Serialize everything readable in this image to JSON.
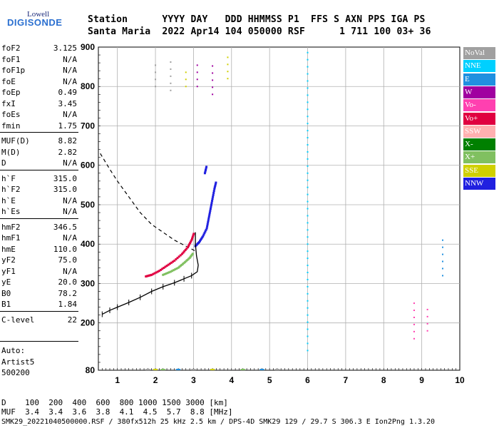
{
  "logo": {
    "top": "Lowell",
    "main": "DIGISONDE"
  },
  "header": {
    "line1": "Station      YYYY DAY   DDD HHMMSS P1  FFS S AXN PPS IGA PS",
    "line2": "Santa Maria  2022 Apr14 104 050000 RSF      1 711 100 03+ 36"
  },
  "params": [
    {
      "group": 0,
      "label": "foF2",
      "value": "3.125"
    },
    {
      "group": 0,
      "label": "foF1",
      "value": "N/A"
    },
    {
      "group": 0,
      "label": "foF1p",
      "value": "N/A"
    },
    {
      "group": 0,
      "label": "foE",
      "value": "N/A"
    },
    {
      "group": 0,
      "label": "foEp",
      "value": "0.49"
    },
    {
      "group": 0,
      "label": "fxI",
      "value": "3.45"
    },
    {
      "group": 0,
      "label": "foEs",
      "value": "N/A"
    },
    {
      "group": 0,
      "label": "fmin",
      "value": "1.75"
    },
    {
      "group": 1,
      "label": "MUF(D)",
      "value": "8.82"
    },
    {
      "group": 1,
      "label": "M(D)",
      "value": "2.82"
    },
    {
      "group": 1,
      "label": "D",
      "value": "N/A"
    },
    {
      "group": 2,
      "label": "h`F",
      "value": "315.0"
    },
    {
      "group": 2,
      "label": "h`F2",
      "value": "315.0"
    },
    {
      "group": 2,
      "label": "h`E",
      "value": "N/A"
    },
    {
      "group": 2,
      "label": "h`Es",
      "value": "N/A"
    },
    {
      "group": 3,
      "label": "hmF2",
      "value": "346.5"
    },
    {
      "group": 3,
      "label": "hmF1",
      "value": "N/A"
    },
    {
      "group": 3,
      "label": "hmE",
      "value": "110.0"
    },
    {
      "group": 3,
      "label": "yF2",
      "value": "75.0"
    },
    {
      "group": 3,
      "label": "yF1",
      "value": "N/A"
    },
    {
      "group": 3,
      "label": "yE",
      "value": "20.0"
    },
    {
      "group": 3,
      "label": "B0",
      "value": "78.2"
    },
    {
      "group": 3,
      "label": "B1",
      "value": "1.84"
    },
    {
      "group": 4,
      "label": "C-level",
      "value": "22"
    }
  ],
  "auto": {
    "line1": "Auto:",
    "line2": "Artist5",
    "line3": "500200"
  },
  "legend": [
    {
      "label": "NoVal",
      "bg": "#a0a0a0",
      "fg": "#ffffff"
    },
    {
      "label": "NNE",
      "bg": "#00d0ff",
      "fg": "#ffffff"
    },
    {
      "label": "E",
      "bg": "#2090e0",
      "fg": "#ffffff"
    },
    {
      "label": "W",
      "bg": "#a000a0",
      "fg": "#ffffff"
    },
    {
      "label": "Vo-",
      "bg": "#ff40b0",
      "fg": "#ffffff"
    },
    {
      "label": "Vo+",
      "bg": "#e00040",
      "fg": "#ffffff"
    },
    {
      "label": "SSW",
      "bg": "#ffb0b0",
      "fg": "#ffffff"
    },
    {
      "label": "X-",
      "bg": "#008000",
      "fg": "#ffffff"
    },
    {
      "label": "X+",
      "bg": "#80c060",
      "fg": "#ffffff"
    },
    {
      "label": "SSE",
      "bg": "#d0d000",
      "fg": "#ffffff"
    },
    {
      "label": "NNW",
      "bg": "#2020e0",
      "fg": "#ffffff"
    }
  ],
  "mufTable": {
    "dLine": "D    100  200  400  600  800 1000 1500 3000 [km]",
    "mufLine": "MUF  3.4  3.4  3.6  3.8  4.1  4.5  5.7  8.8 [MHz]"
  },
  "footer": "SMK29_20221040500000.RSF / 380fx512h 25 kHz 2.5 km / DPS-4D SMK29 129 / 29.7 S 306.3 E Ion2Png 1.3.20",
  "chart_data": {
    "type": "scatter",
    "xlim": [
      0.5,
      10
    ],
    "ylim": [
      80,
      900
    ],
    "xticks": [
      "1",
      "2",
      "3",
      "4",
      "5",
      "6",
      "7",
      "8",
      "9",
      "10"
    ],
    "yticks": [
      "80",
      "200",
      "300",
      "400",
      "500",
      "600",
      "700",
      "800",
      "900"
    ],
    "grid": true,
    "colors": {
      "NoVal": "#a0a0a0",
      "NNE": "#00d0ff",
      "E": "#2090e0",
      "W": "#a000a0",
      "Vo-": "#ff40b0",
      "Vo+": "#e00040",
      "SSW": "#ffb0b0",
      "X-": "#008000",
      "X+": "#80c060",
      "SSE": "#d0d000",
      "NNW": "#2020e0"
    },
    "trace_vo_plus": [
      [
        1.75,
        318
      ],
      [
        1.9,
        322
      ],
      [
        2.1,
        332
      ],
      [
        2.3,
        345
      ],
      [
        2.5,
        358
      ],
      [
        2.7,
        375
      ],
      [
        2.85,
        392
      ],
      [
        2.95,
        410
      ],
      [
        3.02,
        430
      ]
    ],
    "trace_x_plus": [
      [
        2.2,
        322
      ],
      [
        2.4,
        330
      ],
      [
        2.6,
        340
      ],
      [
        2.75,
        352
      ],
      [
        2.9,
        365
      ],
      [
        3.0,
        378
      ]
    ],
    "trace_nnw": [
      [
        3.05,
        395
      ],
      [
        3.15,
        405
      ],
      [
        3.25,
        420
      ],
      [
        3.35,
        440
      ],
      [
        3.4,
        465
      ],
      [
        3.45,
        490
      ],
      [
        3.5,
        515
      ],
      [
        3.55,
        540
      ],
      [
        3.6,
        560
      ]
    ],
    "trace_nnw_upper": [
      [
        3.3,
        580
      ],
      [
        3.35,
        600
      ]
    ],
    "vertical_streaks": [
      {
        "x": 2.0,
        "y0": 800,
        "y1": 870,
        "color": "#a0a0a0"
      },
      {
        "x": 2.4,
        "y0": 790,
        "y1": 870,
        "color": "#a0a0a0"
      },
      {
        "x": 2.8,
        "y0": 800,
        "y1": 840,
        "color": "#d0d000"
      },
      {
        "x": 3.1,
        "y0": 800,
        "y1": 860,
        "color": "#a000a0"
      },
      {
        "x": 3.5,
        "y0": 780,
        "y1": 860,
        "color": "#a000a0"
      },
      {
        "x": 3.9,
        "y0": 820,
        "y1": 880,
        "color": "#d0d000"
      },
      {
        "x": 6.0,
        "y0": 130,
        "y1": 900,
        "color": "#00d0ff"
      },
      {
        "x": 8.8,
        "y0": 160,
        "y1": 250,
        "color": "#ff40b0"
      },
      {
        "x": 9.15,
        "y0": 180,
        "y1": 250,
        "color": "#ff40b0"
      },
      {
        "x": 9.55,
        "y0": 320,
        "y1": 410,
        "color": "#2090e0"
      }
    ],
    "profile": [
      [
        0.6,
        222
      ],
      [
        0.8,
        232
      ],
      [
        1.0,
        240
      ],
      [
        1.3,
        252
      ],
      [
        1.6,
        265
      ],
      [
        1.9,
        280
      ],
      [
        2.2,
        292
      ],
      [
        2.5,
        302
      ],
      [
        2.75,
        312
      ],
      [
        2.95,
        320
      ],
      [
        3.1,
        330
      ],
      [
        3.125,
        346.5
      ],
      [
        3.08,
        370
      ],
      [
        3.05,
        400
      ],
      [
        3.05,
        430
      ]
    ],
    "virtual_height_curve": [
      [
        0.55,
        630
      ],
      [
        0.8,
        590
      ],
      [
        1.0,
        560
      ],
      [
        1.3,
        520
      ],
      [
        1.6,
        480
      ],
      [
        1.9,
        450
      ],
      [
        2.2,
        430
      ],
      [
        2.5,
        410
      ],
      [
        2.8,
        395
      ],
      [
        3.0,
        385
      ],
      [
        3.1,
        380
      ]
    ]
  }
}
